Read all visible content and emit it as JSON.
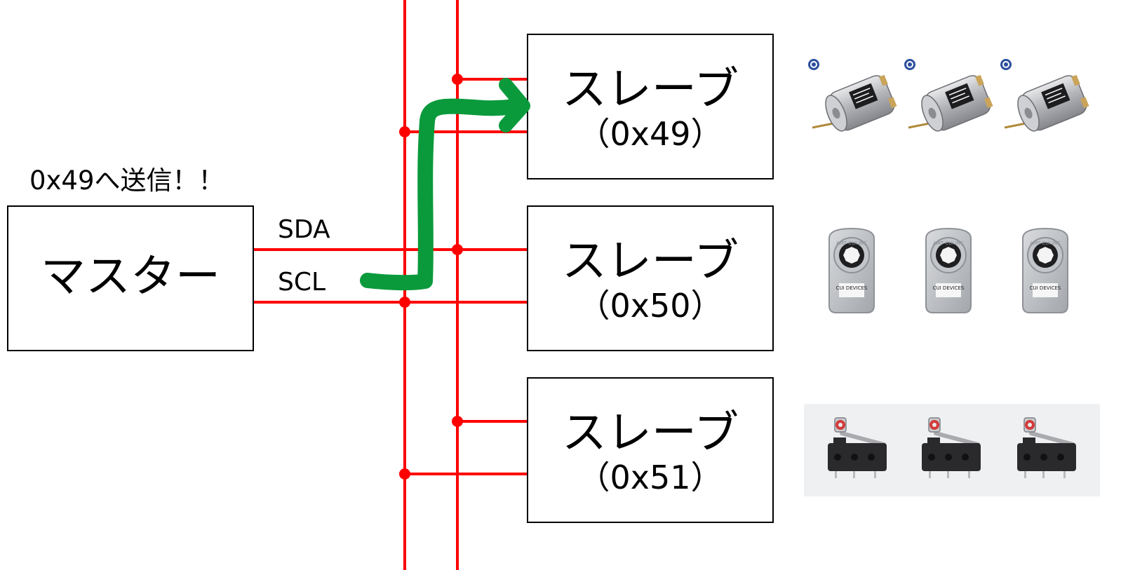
{
  "annotation": "0x49へ送信！！",
  "master": {
    "label": "マスター"
  },
  "bus": {
    "sda_label": "SDA",
    "scl_label": "SCL",
    "line_color": "#ff0000",
    "arrow_color": "#0a9a3c"
  },
  "slaves": [
    {
      "label": "スレーブ",
      "address": "（0x49）",
      "device": "dc-motor"
    },
    {
      "label": "スレーブ",
      "address": "（0x50）",
      "device": "rotary-encoder"
    },
    {
      "label": "スレーブ",
      "address": "（0x51）",
      "device": "micro-switch"
    }
  ],
  "devices": {
    "encoder_brand": "CUI DEVICES",
    "encoder_ring_text": "AMT CUI INC"
  }
}
